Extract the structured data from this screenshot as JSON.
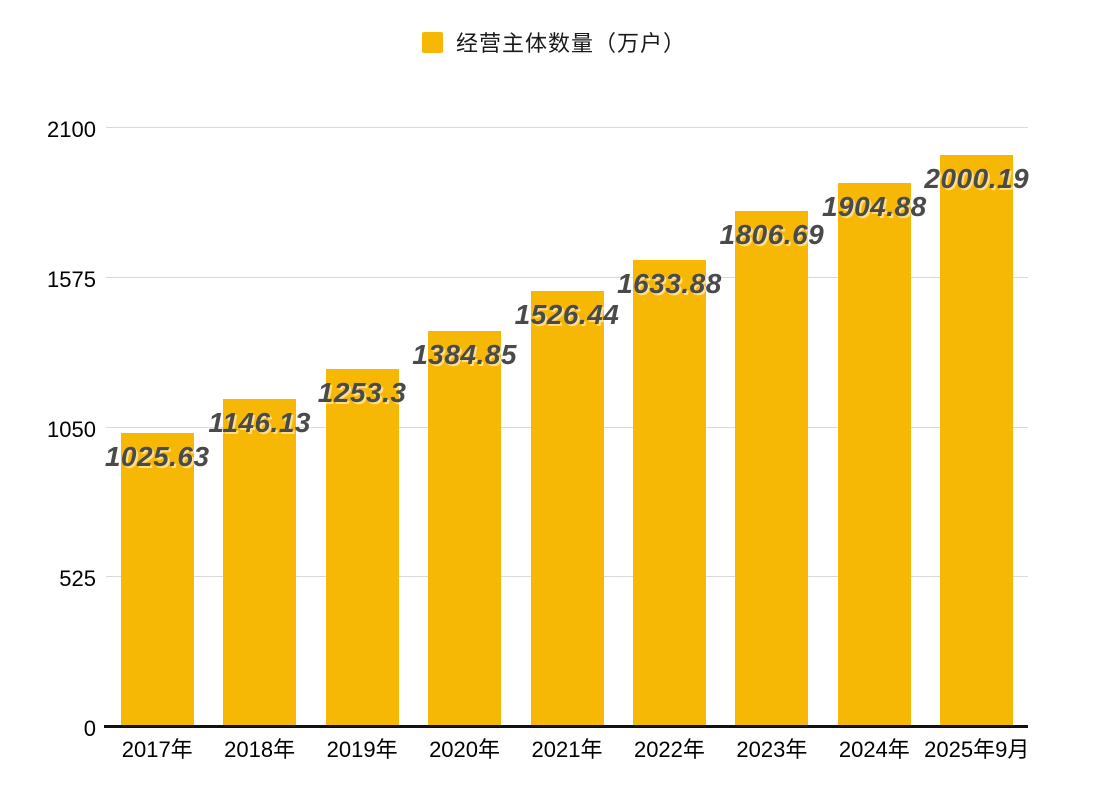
{
  "legend": {
    "label": "经营主体数量（万户）",
    "swatch_color": "#F6B805"
  },
  "chart_data": {
    "type": "bar",
    "title": "",
    "xlabel": "",
    "ylabel": "",
    "legend": [
      "经营主体数量（万户）"
    ],
    "legend_position": "top-center",
    "categories": [
      "2017年",
      "2018年",
      "2019年",
      "2020年",
      "2021年",
      "2022年",
      "2023年",
      "2024年",
      "2025年9月"
    ],
    "values": [
      1025.63,
      1146.13,
      1253.3,
      1384.85,
      1526.44,
      1633.88,
      1806.69,
      1904.88,
      2000.19
    ],
    "ylim": [
      0,
      2100
    ],
    "yticks": [
      0,
      525,
      1050,
      1575,
      2100
    ],
    "grid": true,
    "bar_color": "#F6B805",
    "value_label_color": "#4A4A4A",
    "gridline_color": "#D9D9D9",
    "axis_line_color": "#111111"
  }
}
